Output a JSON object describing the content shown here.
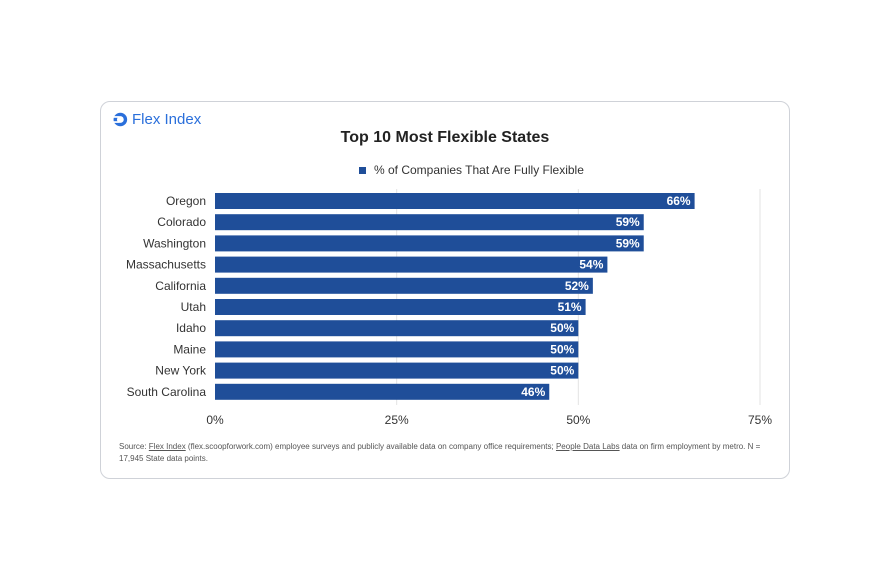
{
  "logo": {
    "text": "Flex Index"
  },
  "chart_data": {
    "type": "bar",
    "orientation": "horizontal",
    "title": "Top 10 Most Flexible States",
    "legend": [
      "% of Companies That Are Fully Flexible"
    ],
    "categories": [
      "Oregon",
      "Colorado",
      "Washington",
      "Massachusetts",
      "California",
      "Utah",
      "Idaho",
      "Maine",
      "New York",
      "South Carolina"
    ],
    "values": [
      66,
      59,
      59,
      54,
      52,
      51,
      50,
      50,
      50,
      46
    ],
    "labels": [
      "66%",
      "59%",
      "59%",
      "54%",
      "52%",
      "51%",
      "50%",
      "50%",
      "50%",
      "46%"
    ],
    "xticks": [
      "0%",
      "25%",
      "50%",
      "75%"
    ],
    "xlim": [
      0,
      75
    ],
    "color": "#1f4e99"
  },
  "source": {
    "prefix": "Source: ",
    "link1": "Flex Index",
    "mid": " (flex.scoopforwork.com) employee surveys and publicly available data on company office requirements; ",
    "link2": "People Data Labs",
    "suffix": " data on firm employment by metro. N = 17,945 State data points."
  }
}
